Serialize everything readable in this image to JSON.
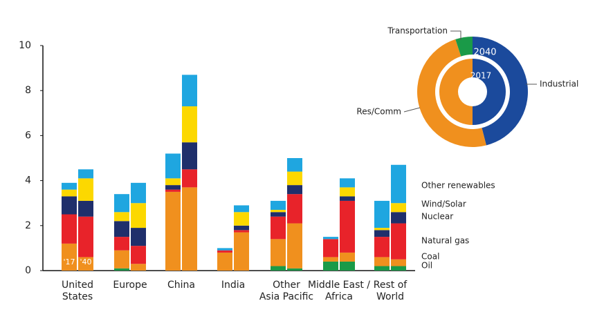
{
  "chart_data": [
    {
      "type": "stacked-pair-bar",
      "categories": [
        [
          "United",
          "States"
        ],
        [
          "Europe"
        ],
        [
          "China"
        ],
        [
          "India"
        ],
        [
          "Other",
          "Asia Pacific"
        ],
        [
          "Middle East /",
          "Africa"
        ],
        [
          "Rest of",
          "World"
        ]
      ],
      "periods": [
        "'17",
        "'40"
      ],
      "ylim": [
        0,
        10
      ],
      "yticks": [
        0,
        2,
        4,
        6,
        8,
        10
      ],
      "series": [
        {
          "name": "Oil",
          "color": "#1a9a48",
          "values": [
            [
              0,
              0
            ],
            [
              0.1,
              0
            ],
            [
              0,
              0
            ],
            [
              0,
              0
            ],
            [
              0.2,
              0.1
            ],
            [
              0.4,
              0.4
            ],
            [
              0.2,
              0.2
            ]
          ]
        },
        {
          "name": "Coal",
          "color": "#f0901e",
          "values": [
            [
              1.2,
              0.6
            ],
            [
              0.8,
              0.3
            ],
            [
              3.5,
              3.7
            ],
            [
              0.8,
              1.7
            ],
            [
              1.2,
              2.0
            ],
            [
              0.2,
              0.4
            ],
            [
              0.4,
              0.3
            ]
          ]
        },
        {
          "name": "Natural gas",
          "color": "#e8232a",
          "values": [
            [
              1.3,
              1.8
            ],
            [
              0.6,
              0.8
            ],
            [
              0.1,
              0.8
            ],
            [
              0.1,
              0.1
            ],
            [
              1.0,
              1.3
            ],
            [
              0.8,
              2.3
            ],
            [
              0.9,
              1.6
            ]
          ]
        },
        {
          "name": "Nuclear",
          "color": "#1f2f6b",
          "values": [
            [
              0.8,
              0.7
            ],
            [
              0.7,
              0.8
            ],
            [
              0.2,
              1.2
            ],
            [
              0,
              0.2
            ],
            [
              0.2,
              0.4
            ],
            [
              0,
              0.2
            ],
            [
              0.3,
              0.5
            ]
          ]
        },
        {
          "name": "Wind/Solar",
          "color": "#fcd800",
          "values": [
            [
              0.3,
              1.0
            ],
            [
              0.4,
              1.1
            ],
            [
              0.3,
              1.6
            ],
            [
              0,
              0.6
            ],
            [
              0.1,
              0.6
            ],
            [
              0,
              0.4
            ],
            [
              0.1,
              0.4
            ]
          ]
        },
        {
          "name": "Other renewables",
          "color": "#1fa6e0",
          "values": [
            [
              0.3,
              0.4
            ],
            [
              0.8,
              0.9
            ],
            [
              1.1,
              1.4
            ],
            [
              0.1,
              0.3
            ],
            [
              0.4,
              0.6
            ],
            [
              0.1,
              0.4
            ],
            [
              1.2,
              1.7
            ]
          ]
        }
      ]
    },
    {
      "type": "donut",
      "labels": [
        "Industrial",
        "Res/Comm",
        "Transportation"
      ],
      "colors": [
        "#1b4a9c",
        "#f0901e",
        "#1a9a48"
      ],
      "rings": [
        {
          "name": "2017",
          "values": [
            50,
            50,
            0
          ]
        },
        {
          "name": "2040",
          "values": [
            46,
            49,
            5
          ]
        }
      ]
    }
  ]
}
